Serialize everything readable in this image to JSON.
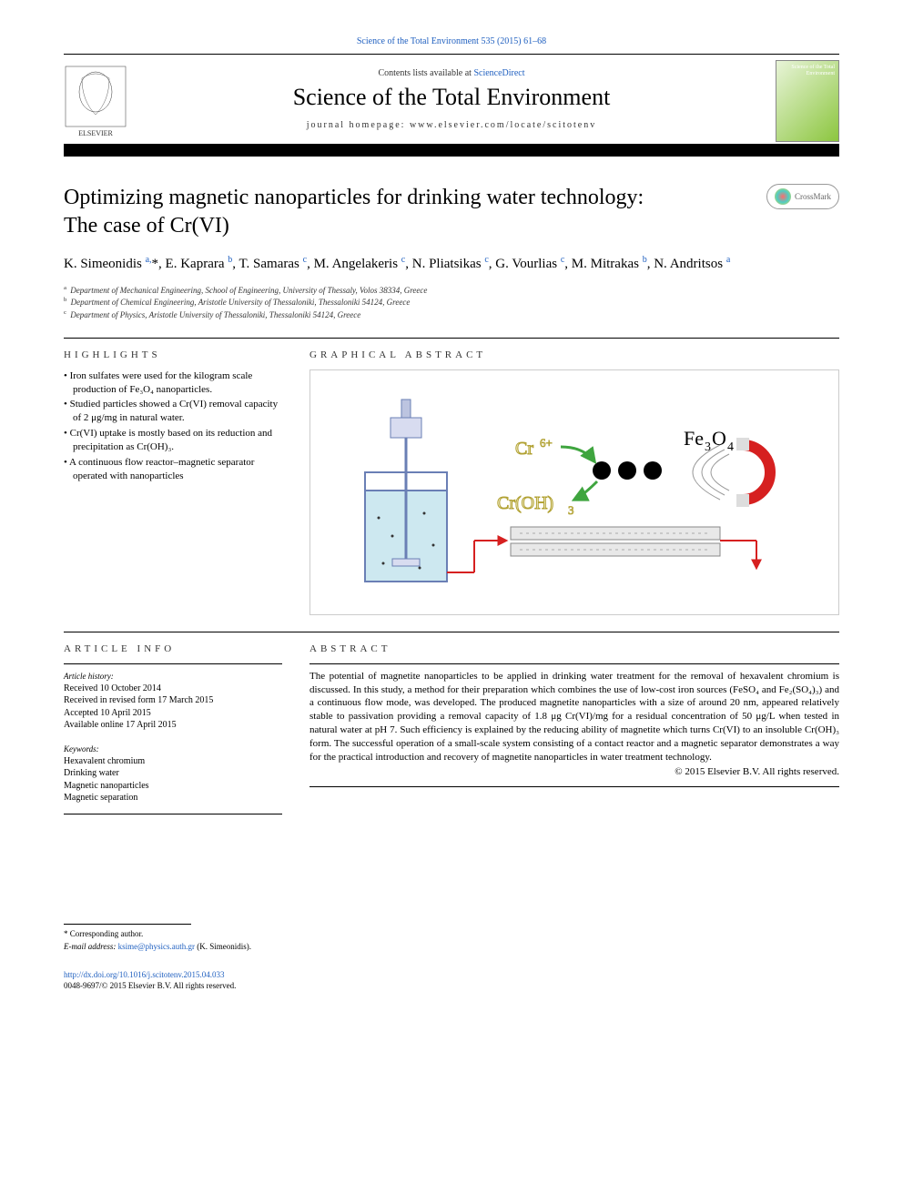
{
  "citation": "Science of the Total Environment 535 (2015) 61–68",
  "header": {
    "contents_prefix": "Contents lists available at ",
    "contents_link": "ScienceDirect",
    "journal_name": "Science of the Total Environment",
    "homepage_prefix": "journal homepage: ",
    "homepage_url": "www.elsevier.com/locate/scitotenv",
    "cover_label": "Science of the\nTotal Environment"
  },
  "title_line1": "Optimizing magnetic nanoparticles for drinking water technology:",
  "title_line2": "The case of Cr(VI)",
  "crossmark": "CrossMark",
  "authors_html": "K. Simeonidis <sup><a>a,</a></sup>*, E. Kaprara <sup><a>b</a></sup>, T. Samaras <sup><a>c</a></sup>, M. Angelakeris <sup><a>c</a></sup>, N. Pliatsikas <sup><a>c</a></sup>, G. Vourlias <sup><a>c</a></sup>, M. Mitrakas <sup><a>b</a></sup>, N. Andritsos <sup><a>a</a></sup>",
  "affiliations": [
    {
      "sup": "a",
      "text": "Department of Mechanical Engineering, School of Engineering, University of Thessaly, Volos 38334, Greece"
    },
    {
      "sup": "b",
      "text": "Department of Chemical Engineering, Aristotle University of Thessaloniki, Thessaloniki 54124, Greece"
    },
    {
      "sup": "c",
      "text": "Department of Physics, Aristotle University of Thessaloniki, Thessaloniki 54124, Greece"
    }
  ],
  "highlights": {
    "label": "HIGHLIGHTS",
    "items": [
      "Iron sulfates were used for the kilogram scale production of Fe₃O₄ nanoparticles.",
      "Studied particles showed a Cr(VI) removal capacity of 2 μg/mg in natural water.",
      "Cr(VI) uptake is mostly based on its reduction and precipitation as Cr(OH)₃.",
      "A continuous flow reactor–magnetic separator operated with nanoparticles"
    ]
  },
  "graphical_abstract": {
    "label": "GRAPHICAL ABSTRACT",
    "labels": {
      "fe3o4": "Fe₃O₄",
      "cr6": "Cr⁶⁺",
      "croh3": "Cr(OH)₃"
    },
    "colors": {
      "water": "#cde8f0",
      "tank_stroke": "#6a7fb5",
      "particle": "#000000",
      "magnet_red": "#d62020",
      "arrow_green": "#3fa53f",
      "arrow_red": "#d62020",
      "label_outline": "#b0a030",
      "label_fill": "#f5f0d0",
      "pipe_fill": "#e8e8e8",
      "pipe_stroke": "#888888"
    }
  },
  "article_info": {
    "label": "ARTICLE INFO",
    "history_label": "Article history:",
    "history": [
      "Received 10 October 2014",
      "Received in revised form 17 March 2015",
      "Accepted 10 April 2015",
      "Available online 17 April 2015"
    ],
    "keywords_label": "Keywords:",
    "keywords": [
      "Hexavalent chromium",
      "Drinking water",
      "Magnetic nanoparticles",
      "Magnetic separation"
    ]
  },
  "abstract": {
    "label": "ABSTRACT",
    "text": "The potential of magnetite nanoparticles to be applied in drinking water treatment for the removal of hexavalent chromium is discussed. In this study, a method for their preparation which combines the use of low-cost iron sources (FeSO₄ and Fe₂(SO₄)₃) and a continuous flow mode, was developed. The produced magnetite nanoparticles with a size of around 20 nm, appeared relatively stable to passivation providing a removal capacity of 1.8 μg Cr(VI)/mg for a residual concentration of 50 μg/L when tested in natural water at pH 7. Such efficiency is explained by the reducing ability of magnetite which turns Cr(VI) to an insoluble Cr(OH)₃ form. The successful operation of a small-scale system consisting of a contact reactor and a magnetic separator demonstrates a way for the practical introduction and recovery of magnetite nanoparticles in water treatment technology.",
    "copyright": "© 2015 Elsevier B.V. All rights reserved."
  },
  "footer": {
    "corr_label": "* Corresponding author.",
    "email_label": "E-mail address: ",
    "email": "ksime@physics.auth.gr",
    "email_suffix": " (K. Simeonidis).",
    "doi_url": "http://dx.doi.org/10.1016/j.scitotenv.2015.04.033",
    "issn_line": "0048-9697/© 2015 Elsevier B.V. All rights reserved."
  }
}
